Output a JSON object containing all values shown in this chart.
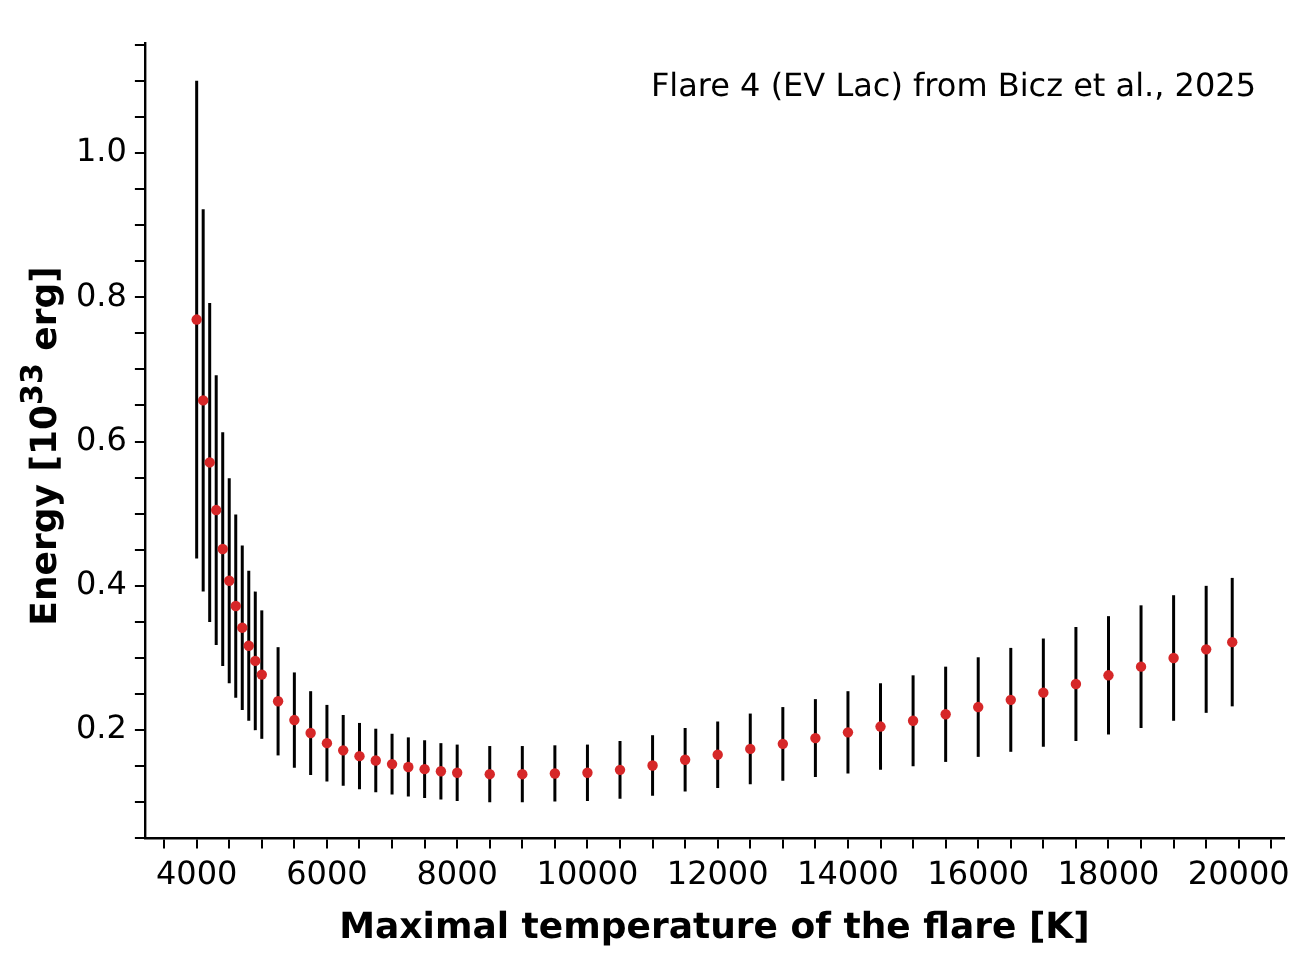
{
  "chart_data": {
    "type": "scatter",
    "xlabel": "Maximal temperature of the flare [K]",
    "ylabel": "Energy [10$^{33}$ erg]",
    "annotations": [
      "Flare 4 (EV Lac) from Bicz et al., 2025"
    ],
    "x": [
      4000,
      4100,
      4200,
      4300,
      4400,
      4500,
      4600,
      4700,
      4800,
      4900,
      5000,
      5250,
      5500,
      5750,
      6000,
      6250,
      6500,
      6750,
      7000,
      7250,
      7500,
      7750,
      8000,
      8500,
      9000,
      9500,
      10000,
      10500,
      11000,
      11500,
      12000,
      12500,
      13000,
      13500,
      14000,
      14500,
      15000,
      15500,
      16000,
      16500,
      17000,
      17500,
      18000,
      18500,
      19000,
      19500,
      19900
    ],
    "values": [
      0.769,
      0.657,
      0.571,
      0.505,
      0.451,
      0.407,
      0.372,
      0.342,
      0.317,
      0.296,
      0.277,
      0.24,
      0.214,
      0.196,
      0.182,
      0.172,
      0.164,
      0.158,
      0.153,
      0.149,
      0.146,
      0.143,
      0.141,
      0.139,
      0.139,
      0.14,
      0.141,
      0.145,
      0.151,
      0.159,
      0.166,
      0.174,
      0.181,
      0.189,
      0.197,
      0.205,
      0.213,
      0.222,
      0.232,
      0.242,
      0.252,
      0.264,
      0.276,
      0.288,
      0.3,
      0.312,
      0.322
    ],
    "errors": [
      0.331,
      0.265,
      0.221,
      0.187,
      0.162,
      0.142,
      0.127,
      0.114,
      0.104,
      0.096,
      0.089,
      0.075,
      0.066,
      0.058,
      0.053,
      0.049,
      0.046,
      0.044,
      0.042,
      0.041,
      0.04,
      0.039,
      0.039,
      0.039,
      0.039,
      0.039,
      0.039,
      0.04,
      0.042,
      0.044,
      0.046,
      0.049,
      0.051,
      0.054,
      0.057,
      0.06,
      0.063,
      0.066,
      0.069,
      0.072,
      0.075,
      0.079,
      0.082,
      0.085,
      0.087,
      0.088,
      0.089
    ],
    "color": "#d62728",
    "marker": "circle",
    "legend": false,
    "grid": false,
    "xlim": [
      3205,
      20695
    ],
    "xticks": [
      {
        "value": 3500,
        "label": null
      },
      4000,
      {
        "value": 4500,
        "label": null
      },
      {
        "value": 5000,
        "label": null
      },
      {
        "value": 5500,
        "label": null
      },
      6000,
      {
        "value": 6500,
        "label": null
      },
      {
        "value": 7000,
        "label": null
      },
      {
        "value": 7500,
        "label": null
      },
      8000,
      {
        "value": 8500,
        "label": null
      },
      {
        "value": 9000,
        "label": null
      },
      {
        "value": 9500,
        "label": null
      },
      10000,
      {
        "value": 10500,
        "label": null
      },
      {
        "value": 11000,
        "label": null
      },
      {
        "value": 11500,
        "label": null
      },
      12000,
      {
        "value": 12500,
        "label": null
      },
      {
        "value": 13000,
        "label": null
      },
      {
        "value": 13500,
        "label": null
      },
      14000,
      {
        "value": 14500,
        "label": null
      },
      {
        "value": 15000,
        "label": null
      },
      {
        "value": 15500,
        "label": null
      },
      16000,
      {
        "value": 16500,
        "label": null
      },
      {
        "value": 17000,
        "label": null
      },
      {
        "value": 17500,
        "label": null
      },
      18000,
      {
        "value": 18500,
        "label": null
      },
      {
        "value": 19000,
        "label": null
      },
      {
        "value": 19500,
        "label": null
      },
      20000,
      {
        "value": 20500,
        "label": null
      }
    ],
    "ylim": [
      0.05,
      1.152
    ],
    "yticks": [
      {
        "value": 0.05,
        "label": null
      },
      {
        "value": 0.1,
        "label": null
      },
      {
        "value": 0.15,
        "label": null
      },
      0.2,
      {
        "value": 0.25,
        "label": null
      },
      {
        "value": 0.3,
        "label": null
      },
      {
        "value": 0.35,
        "label": null
      },
      0.4,
      {
        "value": 0.45,
        "label": null
      },
      {
        "value": 0.5,
        "label": null
      },
      {
        "value": 0.55,
        "label": null
      },
      0.6,
      {
        "value": 0.65,
        "label": null
      },
      {
        "value": 0.7,
        "label": null
      },
      {
        "value": 0.75,
        "label": null
      },
      0.8,
      {
        "value": 0.85,
        "label": null
      },
      {
        "value": 0.9,
        "label": null
      },
      {
        "value": 0.95,
        "label": null
      },
      {
        "value": 1.0,
        "label": "1.0"
      },
      {
        "value": 1.05,
        "label": null
      },
      {
        "value": 1.1,
        "label": null
      },
      {
        "value": 1.15,
        "label": null
      }
    ]
  }
}
